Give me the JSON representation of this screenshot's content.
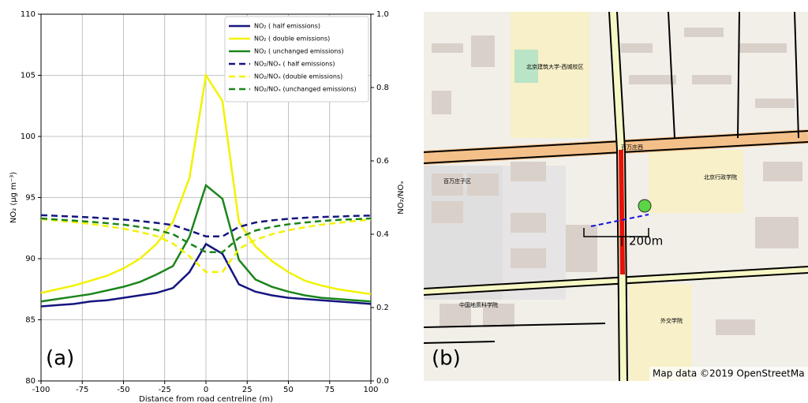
{
  "chart_data": {
    "type": "line",
    "annotation": "(a)",
    "x_label": "Distance from road centreline (m)",
    "y_label": "NO₂ (μg m⁻³)",
    "y2_label": "NO₂/NOₓ",
    "x": [
      -100,
      -90,
      -80,
      -70,
      -60,
      -50,
      -40,
      -30,
      -20,
      -10,
      0,
      10,
      20,
      30,
      40,
      50,
      60,
      70,
      80,
      90,
      100
    ],
    "xlim": [
      -100,
      100
    ],
    "xticks": [
      -100,
      -75,
      -50,
      -25,
      0,
      25,
      50,
      75,
      100
    ],
    "ylim": [
      80,
      110
    ],
    "yticks": [
      80,
      85,
      90,
      95,
      100,
      105,
      110
    ],
    "y2lim": [
      0,
      1
    ],
    "y2ticks": [
      {
        "value": 0,
        "label": "0.0"
      },
      0.2,
      0.4,
      0.6,
      0.8,
      {
        "value": 1,
        "label": "1.0"
      }
    ],
    "grid": true,
    "legend": "upper right",
    "series": [
      {
        "name": "NO₂ ( half emissions)",
        "color": "#15157f",
        "linestyle": "solid",
        "values": [
          86.1,
          86.2,
          86.3,
          86.5,
          86.6,
          86.8,
          87.0,
          87.2,
          87.6,
          88.9,
          91.2,
          90.4,
          87.9,
          87.3,
          87.0,
          86.8,
          86.7,
          86.6,
          86.5,
          86.4,
          86.3
        ]
      },
      {
        "name": "NO₂ ( double emissions)",
        "color": "#f2f200",
        "linestyle": "solid",
        "values": [
          87.2,
          87.5,
          87.8,
          88.2,
          88.6,
          89.2,
          90.0,
          91.2,
          93.0,
          96.6,
          105.0,
          102.9,
          93.0,
          91.0,
          89.8,
          88.9,
          88.2,
          87.8,
          87.5,
          87.3,
          87.1
        ]
      },
      {
        "name": "NO₂ ( unchanged emissions)",
        "color": "#1b851b",
        "linestyle": "solid",
        "values": [
          86.5,
          86.7,
          86.9,
          87.1,
          87.4,
          87.7,
          88.1,
          88.7,
          89.4,
          91.8,
          96.0,
          94.9,
          89.9,
          88.3,
          87.7,
          87.3,
          87.0,
          86.8,
          86.7,
          86.6,
          86.5
        ]
      },
      {
        "name": "NO₂/NOₓ ( half emissions)",
        "color": "#15157f",
        "linestyle": "dashed",
        "axis": "y2",
        "values": [
          0.452,
          0.45,
          0.448,
          0.446,
          0.443,
          0.44,
          0.436,
          0.431,
          0.425,
          0.41,
          0.394,
          0.394,
          0.42,
          0.432,
          0.438,
          0.442,
          0.445,
          0.447,
          0.448,
          0.45,
          0.451
        ]
      },
      {
        "name": "NO₂/NOₓ (double emissions)",
        "color": "#f2f200",
        "linestyle": "dashed",
        "axis": "y2",
        "values": [
          0.441,
          0.437,
          0.433,
          0.428,
          0.422,
          0.415,
          0.406,
          0.395,
          0.375,
          0.34,
          0.297,
          0.297,
          0.36,
          0.385,
          0.4,
          0.411,
          0.419,
          0.426,
          0.431,
          0.436,
          0.44
        ]
      },
      {
        "name": "NO₂/NOₓ (unchanged emissions)",
        "color": "#1b851b",
        "linestyle": "dashed",
        "axis": "y2",
        "values": [
          0.443,
          0.44,
          0.437,
          0.434,
          0.43,
          0.426,
          0.42,
          0.412,
          0.4,
          0.375,
          0.351,
          0.351,
          0.39,
          0.41,
          0.42,
          0.427,
          0.432,
          0.436,
          0.439,
          0.441,
          0.443
        ]
      }
    ]
  },
  "map": {
    "annotation": "(b)",
    "scale_label": "200m",
    "attribution": "Map data ©2019 OpenStreetMa",
    "labels": [
      "北京建筑大学-西城校区",
      "百万庄西",
      "北京行政学院",
      "外交学院",
      "中国地质科学院",
      "百万庄子区"
    ]
  }
}
